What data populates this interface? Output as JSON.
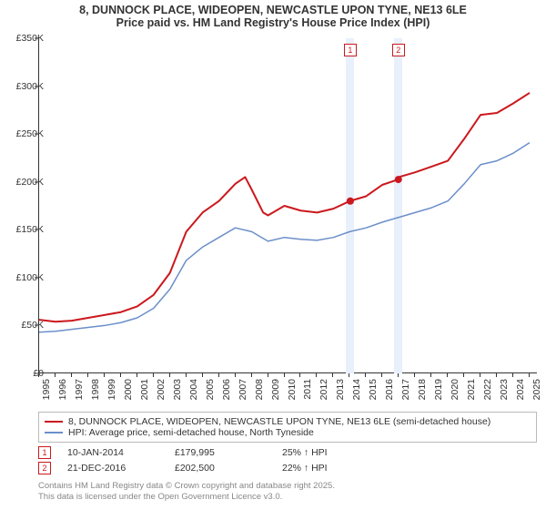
{
  "title": {
    "line1": "8, DUNNOCK PLACE, WIDEOPEN, NEWCASTLE UPON TYNE, NE13 6LE",
    "line2": "Price paid vs. HM Land Registry's House Price Index (HPI)",
    "fontsize": 12.5,
    "fontweight": "bold",
    "color": "#333333"
  },
  "chart": {
    "type": "line",
    "background_color": "#ffffff",
    "x_range": [
      1995,
      2025.5
    ],
    "y_range": [
      0,
      350000
    ],
    "y_ticks": [
      0,
      50000,
      100000,
      150000,
      200000,
      250000,
      300000,
      350000
    ],
    "y_tick_labels": [
      "£0",
      "£50K",
      "£100K",
      "£150K",
      "£200K",
      "£250K",
      "£300K",
      "£350K"
    ],
    "x_ticks": [
      1995,
      1996,
      1997,
      1998,
      1999,
      2000,
      2001,
      2002,
      2003,
      2004,
      2005,
      2006,
      2007,
      2008,
      2009,
      2010,
      2011,
      2012,
      2013,
      2014,
      2015,
      2016,
      2017,
      2018,
      2019,
      2020,
      2021,
      2022,
      2023,
      2024,
      2025
    ],
    "axis_color": "#333333",
    "tick_fontsize": 10.5,
    "series": [
      {
        "name": "8, DUNNOCK PLACE, WIDEOPEN, NEWCASTLE UPON TYNE, NE13 6LE (semi-detached house)",
        "color": "#cb181d",
        "line_width": 2,
        "data": [
          [
            1995,
            56000
          ],
          [
            1996,
            54000
          ],
          [
            1997,
            55000
          ],
          [
            1998,
            58000
          ],
          [
            1999,
            61000
          ],
          [
            2000,
            64000
          ],
          [
            2001,
            70000
          ],
          [
            2002,
            82000
          ],
          [
            2003,
            105000
          ],
          [
            2004,
            148000
          ],
          [
            2005,
            168000
          ],
          [
            2006,
            180000
          ],
          [
            2007,
            198000
          ],
          [
            2007.6,
            205000
          ],
          [
            2008,
            192000
          ],
          [
            2008.7,
            168000
          ],
          [
            2009,
            165000
          ],
          [
            2010,
            175000
          ],
          [
            2011,
            170000
          ],
          [
            2012,
            168000
          ],
          [
            2013,
            172000
          ],
          [
            2014,
            180000
          ],
          [
            2015,
            185000
          ],
          [
            2016,
            197000
          ],
          [
            2016.97,
            202500
          ],
          [
            2017,
            205000
          ],
          [
            2018,
            210000
          ],
          [
            2019,
            216000
          ],
          [
            2020,
            222000
          ],
          [
            2021,
            245000
          ],
          [
            2022,
            270000
          ],
          [
            2023,
            272000
          ],
          [
            2024,
            282000
          ],
          [
            2025,
            293000
          ]
        ]
      },
      {
        "name": "HPI: Average price, semi-detached house, North Tyneside",
        "color": "#6b8fc9",
        "line_width": 1.5,
        "data": [
          [
            1995,
            43000
          ],
          [
            1996,
            44000
          ],
          [
            1997,
            46000
          ],
          [
            1998,
            48000
          ],
          [
            1999,
            50000
          ],
          [
            2000,
            53000
          ],
          [
            2001,
            58000
          ],
          [
            2002,
            68000
          ],
          [
            2003,
            88000
          ],
          [
            2004,
            118000
          ],
          [
            2005,
            132000
          ],
          [
            2006,
            142000
          ],
          [
            2007,
            152000
          ],
          [
            2008,
            148000
          ],
          [
            2009,
            138000
          ],
          [
            2010,
            142000
          ],
          [
            2011,
            140000
          ],
          [
            2012,
            139000
          ],
          [
            2013,
            142000
          ],
          [
            2014,
            148000
          ],
          [
            2015,
            152000
          ],
          [
            2016,
            158000
          ],
          [
            2017,
            163000
          ],
          [
            2018,
            168000
          ],
          [
            2019,
            173000
          ],
          [
            2020,
            180000
          ],
          [
            2021,
            198000
          ],
          [
            2022,
            218000
          ],
          [
            2023,
            222000
          ],
          [
            2024,
            230000
          ],
          [
            2025,
            241000
          ]
        ]
      }
    ],
    "transaction_markers": [
      {
        "id": "1",
        "x": 2014.03,
        "date": "10-JAN-2014",
        "price": "£179,995",
        "delta_hpi": "25% ↑ HPI",
        "point_y": 179995,
        "band_width_years": 0.5,
        "box_color": "#cb181d"
      },
      {
        "id": "2",
        "x": 2016.97,
        "date": "21-DEC-2016",
        "price": "£202,500",
        "delta_hpi": "22% ↑ HPI",
        "point_y": 202500,
        "band_width_years": 0.5,
        "box_color": "#cb181d"
      }
    ],
    "band_color": "#e8f0fc",
    "marker_point_radius": 4
  },
  "legend": {
    "border_color": "#bbbbbb",
    "fontsize": 10.5
  },
  "footer": {
    "line1": "Contains HM Land Registry data © Crown copyright and database right 2025.",
    "line2": "This data is licensed under the Open Government Licence v3.0.",
    "color": "#888888",
    "fontsize": 9.5
  }
}
